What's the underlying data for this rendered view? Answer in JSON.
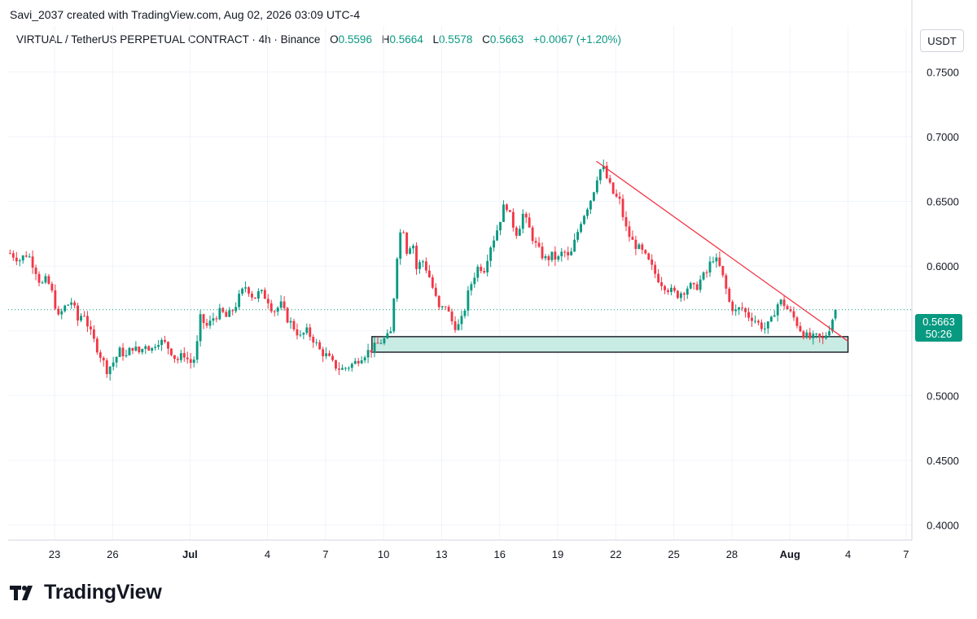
{
  "header": {
    "credit": "Savi_2037 created with TradingView.com, Aug 02, 2026 03:09 UTC-4",
    "symbol": "VIRTUAL / TetherUS PERPETUAL CONTRACT · 4h · Binance",
    "open_label": "O",
    "open": "0.5596",
    "high_label": "H",
    "high": "0.5664",
    "low_label": "L",
    "low": "0.5578",
    "close_label": "C",
    "close": "0.5663",
    "change": "+0.0067 (+1.20%)"
  },
  "currency_button": "USDT",
  "price_tag": {
    "price": "0.5663",
    "countdown": "50:26"
  },
  "brand": "TradingView",
  "colors": {
    "up": "#089981",
    "down": "#f23645",
    "trendline": "#f23645",
    "zone_fill": "#c8ebe3",
    "zone_border": "#131722",
    "last_price": "#089981"
  },
  "chart_data": {
    "type": "candlestick",
    "interval": "4h",
    "y_axis_ticks": [
      "0.7500",
      "0.7000",
      "0.6500",
      "0.6000",
      "0.5500",
      "0.5000",
      "0.4500",
      "0.4000"
    ],
    "ylim": [
      0.3883,
      0.7855
    ],
    "x_axis_ticks": [
      {
        "label": "23",
        "day": 23
      },
      {
        "label": "26",
        "day": 26
      },
      {
        "label": "Jul",
        "day": 30
      },
      {
        "label": "4",
        "day": 34
      },
      {
        "label": "7",
        "day": 37
      },
      {
        "label": "10",
        "day": 40
      },
      {
        "label": "13",
        "day": 43
      },
      {
        "label": "16",
        "day": 46
      },
      {
        "label": "19",
        "day": 49
      },
      {
        "label": "22",
        "day": 52
      },
      {
        "label": "25",
        "day": 55
      },
      {
        "label": "28",
        "day": 58
      },
      {
        "label": "Aug",
        "day": 61
      },
      {
        "label": "4",
        "day": 64
      },
      {
        "label": "7",
        "day": 67
      }
    ],
    "xlim": [
      20.6,
      67.3
    ],
    "path": [
      [
        20.7,
        0.61
      ],
      [
        21.2,
        0.605
      ],
      [
        21.6,
        0.61
      ],
      [
        22.0,
        0.598
      ],
      [
        22.3,
        0.585
      ],
      [
        22.6,
        0.59
      ],
      [
        22.9,
        0.578
      ],
      [
        23.2,
        0.56
      ],
      [
        23.5,
        0.568
      ],
      [
        23.9,
        0.573
      ],
      [
        24.2,
        0.558
      ],
      [
        24.5,
        0.565
      ],
      [
        24.8,
        0.55
      ],
      [
        25.1,
        0.54
      ],
      [
        25.4,
        0.53
      ],
      [
        25.7,
        0.52
      ],
      [
        26.0,
        0.525
      ],
      [
        26.4,
        0.535
      ],
      [
        26.7,
        0.53
      ],
      [
        27.0,
        0.538
      ],
      [
        27.4,
        0.533
      ],
      [
        27.7,
        0.54
      ],
      [
        28.0,
        0.535
      ],
      [
        28.3,
        0.543
      ],
      [
        28.7,
        0.54
      ],
      [
        29.0,
        0.535
      ],
      [
        29.3,
        0.527
      ],
      [
        29.7,
        0.532
      ],
      [
        30.0,
        0.525
      ],
      [
        30.3,
        0.53
      ],
      [
        30.5,
        0.56
      ],
      [
        30.9,
        0.553
      ],
      [
        31.2,
        0.56
      ],
      [
        31.6,
        0.565
      ],
      [
        31.9,
        0.56
      ],
      [
        32.3,
        0.568
      ],
      [
        32.6,
        0.578
      ],
      [
        32.9,
        0.585
      ],
      [
        33.3,
        0.575
      ],
      [
        33.6,
        0.58
      ],
      [
        34.0,
        0.575
      ],
      [
        34.3,
        0.565
      ],
      [
        34.7,
        0.57
      ],
      [
        35.0,
        0.56
      ],
      [
        35.4,
        0.552
      ],
      [
        35.7,
        0.545
      ],
      [
        36.0,
        0.55
      ],
      [
        36.4,
        0.543
      ],
      [
        36.7,
        0.535
      ],
      [
        37.1,
        0.53
      ],
      [
        37.4,
        0.524
      ],
      [
        37.8,
        0.52
      ],
      [
        38.1,
        0.522
      ],
      [
        38.5,
        0.525
      ],
      [
        38.8,
        0.53
      ],
      [
        39.1,
        0.533
      ],
      [
        39.5,
        0.537
      ],
      [
        39.8,
        0.541
      ],
      [
        40.2,
        0.545
      ],
      [
        40.45,
        0.55
      ],
      [
        40.6,
        0.598
      ],
      [
        40.85,
        0.625
      ],
      [
        41.0,
        0.632
      ],
      [
        41.2,
        0.612
      ],
      [
        41.5,
        0.62
      ],
      [
        41.7,
        0.598
      ],
      [
        42.0,
        0.605
      ],
      [
        42.3,
        0.595
      ],
      [
        42.6,
        0.58
      ],
      [
        42.9,
        0.565
      ],
      [
        43.2,
        0.57
      ],
      [
        43.5,
        0.558
      ],
      [
        43.8,
        0.552
      ],
      [
        44.1,
        0.56
      ],
      [
        44.3,
        0.575
      ],
      [
        44.6,
        0.59
      ],
      [
        44.9,
        0.6
      ],
      [
        45.2,
        0.598
      ],
      [
        45.5,
        0.615
      ],
      [
        45.8,
        0.625
      ],
      [
        46.1,
        0.64
      ],
      [
        46.3,
        0.65
      ],
      [
        46.6,
        0.635
      ],
      [
        46.9,
        0.625
      ],
      [
        47.2,
        0.64
      ],
      [
        47.5,
        0.63
      ],
      [
        47.8,
        0.618
      ],
      [
        48.1,
        0.61
      ],
      [
        48.4,
        0.605
      ],
      [
        48.7,
        0.608
      ],
      [
        49.0,
        0.605
      ],
      [
        49.3,
        0.612
      ],
      [
        49.6,
        0.605
      ],
      [
        49.9,
        0.62
      ],
      [
        50.2,
        0.635
      ],
      [
        50.5,
        0.645
      ],
      [
        50.8,
        0.655
      ],
      [
        51.0,
        0.668
      ],
      [
        51.3,
        0.678
      ],
      [
        51.6,
        0.665
      ],
      [
        51.9,
        0.655
      ],
      [
        52.2,
        0.65
      ],
      [
        52.5,
        0.63
      ],
      [
        52.8,
        0.62
      ],
      [
        53.1,
        0.615
      ],
      [
        53.4,
        0.61
      ],
      [
        53.7,
        0.603
      ],
      [
        54.0,
        0.595
      ],
      [
        54.3,
        0.588
      ],
      [
        54.6,
        0.584
      ],
      [
        54.9,
        0.58
      ],
      [
        55.2,
        0.578
      ],
      [
        55.5,
        0.581
      ],
      [
        55.8,
        0.585
      ],
      [
        56.1,
        0.582
      ],
      [
        56.4,
        0.59
      ],
      [
        56.7,
        0.595
      ],
      [
        57.0,
        0.607
      ],
      [
        57.3,
        0.602
      ],
      [
        57.6,
        0.588
      ],
      [
        57.9,
        0.57
      ],
      [
        58.2,
        0.565
      ],
      [
        58.5,
        0.568
      ],
      [
        58.8,
        0.562
      ],
      [
        59.1,
        0.56
      ],
      [
        59.4,
        0.555
      ],
      [
        59.7,
        0.552
      ],
      [
        60.0,
        0.556
      ],
      [
        60.3,
        0.57
      ],
      [
        60.6,
        0.573
      ],
      [
        60.9,
        0.566
      ],
      [
        61.2,
        0.56
      ],
      [
        61.5,
        0.552
      ],
      [
        61.8,
        0.546
      ],
      [
        62.1,
        0.544
      ],
      [
        62.4,
        0.545
      ],
      [
        62.7,
        0.543
      ],
      [
        63.0,
        0.551
      ],
      [
        63.2,
        0.5596
      ],
      [
        63.35,
        0.5663
      ]
    ],
    "last": {
      "open": 0.5596,
      "high": 0.5664,
      "low": 0.5578,
      "close": 0.5663
    },
    "trendline": {
      "from": {
        "day": 51.0,
        "price": 0.681
      },
      "to": {
        "day": 64.0,
        "price": 0.542
      }
    },
    "support_zone": {
      "day_start": 39.4,
      "day_end": 64.0,
      "price_top": 0.5455,
      "price_bottom": 0.5335
    }
  }
}
